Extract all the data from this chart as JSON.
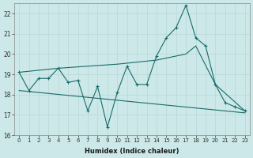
{
  "xlabel": "Humidex (Indice chaleur)",
  "bg_color": "#cce8e8",
  "line_color": "#1a6b6b",
  "grid_color": "#b8d8d8",
  "xlim": [
    -0.5,
    23.5
  ],
  "ylim": [
    16,
    22.5
  ],
  "yticks": [
    16,
    17,
    18,
    19,
    20,
    21,
    22
  ],
  "xticks": [
    0,
    1,
    2,
    3,
    4,
    5,
    6,
    7,
    8,
    9,
    10,
    11,
    12,
    13,
    14,
    15,
    16,
    17,
    18,
    19,
    20,
    21,
    22,
    23
  ],
  "series1_x": [
    0,
    1,
    2,
    3,
    4,
    5,
    6,
    7,
    8,
    9,
    10,
    11,
    12,
    13,
    14,
    15,
    16,
    17,
    18,
    19,
    20,
    21,
    22,
    23
  ],
  "series1_y": [
    19.1,
    18.2,
    18.8,
    18.8,
    19.3,
    18.6,
    18.7,
    17.2,
    18.4,
    16.4,
    18.1,
    19.4,
    18.5,
    18.5,
    19.9,
    20.8,
    21.3,
    22.4,
    20.8,
    20.4,
    18.5,
    17.6,
    17.4,
    17.2
  ],
  "series2_x": [
    0,
    4,
    10,
    14,
    17,
    18,
    20,
    23
  ],
  "series2_y": [
    19.1,
    19.3,
    19.5,
    19.7,
    20.0,
    20.4,
    18.5,
    17.2
  ],
  "series3_x": [
    0,
    23
  ],
  "series3_y": [
    18.2,
    17.1
  ]
}
